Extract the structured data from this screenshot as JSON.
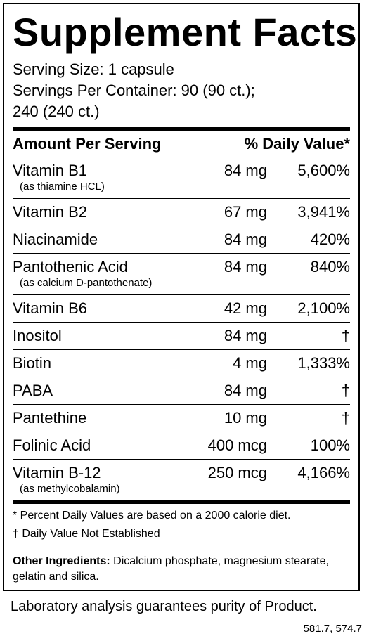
{
  "title": "Supplement Facts",
  "serving_size": "Serving Size: 1 capsule",
  "servings_per_container_line1": "Servings Per Container: 90 (90 ct.);",
  "servings_per_container_line2": "240 (240 ct.)",
  "header": {
    "amount": "Amount Per Serving",
    "dv": "% Daily Value*"
  },
  "rows": [
    {
      "name": "Vitamin B1",
      "amount": "84 mg",
      "dv": "5,600%",
      "sub": "(as thiamine HCL)"
    },
    {
      "name": "Vitamin B2",
      "amount": "67 mg",
      "dv": "3,941%",
      "sub": ""
    },
    {
      "name": "Niacinamide",
      "amount": "84 mg",
      "dv": "420%",
      "sub": ""
    },
    {
      "name": "Pantothenic Acid",
      "amount": "84 mg",
      "dv": "840%",
      "sub": "(as calcium D-pantothenate)"
    },
    {
      "name": "Vitamin B6",
      "amount": "42 mg",
      "dv": "2,100%",
      "sub": ""
    },
    {
      "name": "Inositol",
      "amount": "84 mg",
      "dv": "†",
      "sub": ""
    },
    {
      "name": "Biotin",
      "amount": "4 mg",
      "dv": "1,333%",
      "sub": ""
    },
    {
      "name": "PABA",
      "amount": "84 mg",
      "dv": "†",
      "sub": ""
    },
    {
      "name": "Pantethine",
      "amount": "10 mg",
      "dv": "†",
      "sub": ""
    },
    {
      "name": "Folinic Acid",
      "amount": "400 mcg",
      "dv": "100%",
      "sub": ""
    },
    {
      "name": "Vitamin B-12",
      "amount": "250 mcg",
      "dv": "4,166%",
      "sub": "(as methylcobalamin)"
    }
  ],
  "notes": {
    "percent": "* Percent Daily Values are based on a 2000 calorie diet.",
    "dagger": "† Daily Value Not Established"
  },
  "other_ingredients": {
    "label": "Other Ingredients:",
    "text": " Dicalcium phosphate, magnesium stearate, gelatin and silica."
  },
  "footer": "Laboratory analysis guarantees purity of Product.",
  "lot": "581.7, 574.7"
}
